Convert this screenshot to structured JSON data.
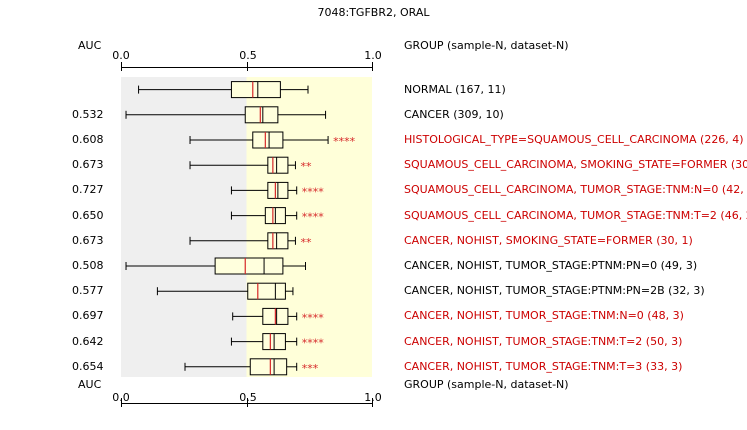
{
  "title": "7048:TGFBR2, ORAL",
  "header": {
    "auc_label": "AUC",
    "group_label": "GROUP (sample-N, dataset-N)",
    "ticks": [
      "0.0",
      "0.5",
      "1.0"
    ]
  },
  "footer": {
    "auc_label": "AUC",
    "group_label": "GROUP (sample-N, dataset-N)",
    "ticks": [
      "0.0",
      "0.5",
      "1.0"
    ]
  },
  "colors": {
    "left_shade": "#efefef",
    "right_shade": "#ffffd9",
    "box_fill": "#ffffdd",
    "median": "#d62728",
    "significant_text": "#cc0000",
    "normal_text": "#000000"
  },
  "chart_data": {
    "type": "boxplot",
    "xlim": [
      0.0,
      1.0
    ],
    "shade_split": 0.5,
    "rows": [
      {
        "group": "NORMAL (167, 11)",
        "auc": "",
        "stars": "",
        "significant": false,
        "whisker_low": 0.07,
        "q1": 0.44,
        "median": 0.525,
        "q3": 0.635,
        "whisker_high": 0.745,
        "mean": 0.545
      },
      {
        "group": "CANCER (309, 10)",
        "auc": "0.532",
        "stars": "",
        "significant": false,
        "whisker_low": 0.02,
        "q1": 0.495,
        "median": 0.555,
        "q3": 0.625,
        "whisker_high": 0.815,
        "mean": 0.565
      },
      {
        "group": "HISTOLOGICAL_TYPE=SQUAMOUS_CELL_CARCINOMA (226, 4)",
        "auc": "0.608",
        "stars": "****",
        "significant": true,
        "whisker_low": 0.275,
        "q1": 0.525,
        "median": 0.575,
        "q3": 0.645,
        "whisker_high": 0.825,
        "mean": 0.59
      },
      {
        "group": "SQUAMOUS_CELL_CARCINOMA, SMOKING_STATE=FORMER (30, 1)",
        "auc": "0.673",
        "stars": "**",
        "significant": true,
        "whisker_low": 0.275,
        "q1": 0.585,
        "median": 0.605,
        "q3": 0.665,
        "whisker_high": 0.695,
        "mean": 0.62
      },
      {
        "group": "SQUAMOUS_CELL_CARCINOMA, TUMOR_STAGE:TNM:N=0 (42, 1)",
        "auc": "0.727",
        "stars": "****",
        "significant": true,
        "whisker_low": 0.44,
        "q1": 0.585,
        "median": 0.615,
        "q3": 0.665,
        "whisker_high": 0.7,
        "mean": 0.625
      },
      {
        "group": "SQUAMOUS_CELL_CARCINOMA, TUMOR_STAGE:TNM:T=2 (46, 2)",
        "auc": "0.650",
        "stars": "****",
        "significant": true,
        "whisker_low": 0.44,
        "q1": 0.575,
        "median": 0.605,
        "q3": 0.655,
        "whisker_high": 0.7,
        "mean": 0.615
      },
      {
        "group": "CANCER, NOHIST, SMOKING_STATE=FORMER (30, 1)",
        "auc": "0.673",
        "stars": "**",
        "significant": true,
        "whisker_low": 0.275,
        "q1": 0.585,
        "median": 0.605,
        "q3": 0.665,
        "whisker_high": 0.695,
        "mean": 0.62
      },
      {
        "group": "CANCER, NOHIST, TUMOR_STAGE:PTNM:PN=0 (49, 3)",
        "auc": "0.508",
        "stars": "",
        "significant": false,
        "whisker_low": 0.02,
        "q1": 0.375,
        "median": 0.495,
        "q3": 0.645,
        "whisker_high": 0.735,
        "mean": 0.57
      },
      {
        "group": "CANCER, NOHIST, TUMOR_STAGE:PTNM:PN=2B (32, 3)",
        "auc": "0.577",
        "stars": "",
        "significant": false,
        "whisker_low": 0.145,
        "q1": 0.505,
        "median": 0.545,
        "q3": 0.655,
        "whisker_high": 0.685,
        "mean": 0.615
      },
      {
        "group": "CANCER, NOHIST, TUMOR_STAGE:TNM:N=0 (48, 3)",
        "auc": "0.697",
        "stars": "****",
        "significant": true,
        "whisker_low": 0.445,
        "q1": 0.565,
        "median": 0.615,
        "q3": 0.665,
        "whisker_high": 0.7,
        "mean": 0.62
      },
      {
        "group": "CANCER, NOHIST, TUMOR_STAGE:TNM:T=2 (50, 3)",
        "auc": "0.642",
        "stars": "****",
        "significant": true,
        "whisker_low": 0.44,
        "q1": 0.565,
        "median": 0.595,
        "q3": 0.655,
        "whisker_high": 0.7,
        "mean": 0.61
      },
      {
        "group": "CANCER, NOHIST, TUMOR_STAGE:TNM:T=3 (33, 3)",
        "auc": "0.654",
        "stars": "***",
        "significant": true,
        "whisker_low": 0.255,
        "q1": 0.515,
        "median": 0.595,
        "q3": 0.66,
        "whisker_high": 0.7,
        "mean": 0.61
      }
    ]
  }
}
